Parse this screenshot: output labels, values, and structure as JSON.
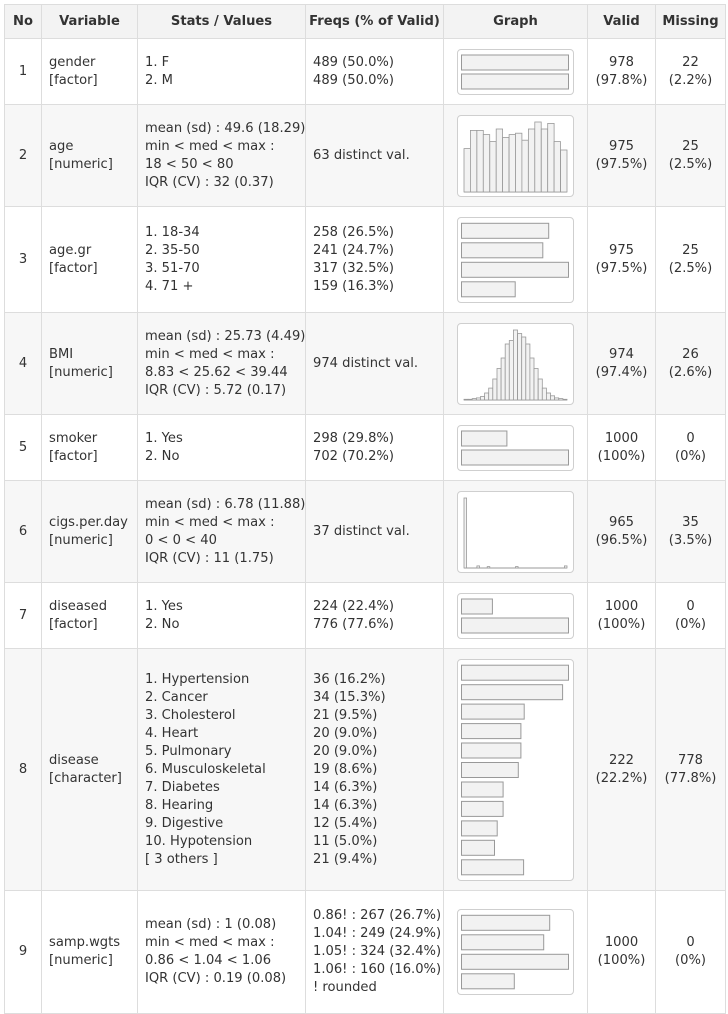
{
  "headers": {
    "no": "No",
    "variable": "Variable",
    "stats": "Stats / Values",
    "freqs": "Freqs (% of Valid)",
    "graph": "Graph",
    "valid": "Valid",
    "missing": "Missing"
  },
  "rows": [
    {
      "no": "1",
      "variable": [
        "gender",
        "[factor]"
      ],
      "stats": [
        "1. F",
        "2. M"
      ],
      "freqs": [
        "489 (50.0%)",
        "489 (50.0%)"
      ],
      "valid": [
        "978",
        "(97.8%)"
      ],
      "missing": [
        "22",
        "(2.2%)"
      ],
      "graph": {
        "type": "bars",
        "values": [
          50.0,
          50.0
        ]
      }
    },
    {
      "no": "2",
      "variable": [
        "age",
        "[numeric]"
      ],
      "stats": [
        "mean (sd) : 49.6 (18.29)",
        "min < med < max :",
        "18 < 50 < 80",
        "IQR (CV) : 32 (0.37)"
      ],
      "freqs": [
        "63 distinct val."
      ],
      "valid": [
        "975",
        "(97.5%)"
      ],
      "missing": [
        "25",
        "(2.5%)"
      ],
      "graph": {
        "type": "histogram",
        "values": [
          0.62,
          0.88,
          0.88,
          0.82,
          0.72,
          0.9,
          0.78,
          0.82,
          0.84,
          0.74,
          0.9,
          1.0,
          0.9,
          0.98,
          0.72,
          0.6
        ]
      }
    },
    {
      "no": "3",
      "variable": [
        "age.gr",
        "[factor]"
      ],
      "stats": [
        "1. 18-34",
        "2. 35-50",
        "3. 51-70",
        "4. 71 +"
      ],
      "freqs": [
        "258 (26.5%)",
        "241 (24.7%)",
        "317 (32.5%)",
        "159 (16.3%)"
      ],
      "valid": [
        "975",
        "(97.5%)"
      ],
      "missing": [
        "25",
        "(2.5%)"
      ],
      "graph": {
        "type": "bars",
        "values": [
          26.5,
          24.7,
          32.5,
          16.3
        ]
      }
    },
    {
      "no": "4",
      "variable": [
        "BMI",
        "[numeric]"
      ],
      "stats": [
        "mean (sd) : 25.73 (4.49)",
        "min < med < max :",
        "8.83 < 25.62 < 39.44",
        "IQR (CV) : 5.72 (0.17)"
      ],
      "freqs": [
        "974 distinct val."
      ],
      "valid": [
        "974",
        "(97.4%)"
      ],
      "missing": [
        "26",
        "(2.6%)"
      ],
      "graph": {
        "type": "histogram",
        "values": [
          0.01,
          0.01,
          0.02,
          0.03,
          0.05,
          0.1,
          0.17,
          0.3,
          0.45,
          0.6,
          0.8,
          0.85,
          1.0,
          0.95,
          0.9,
          0.8,
          0.6,
          0.45,
          0.3,
          0.17,
          0.1,
          0.06,
          0.03,
          0.02,
          0.01
        ]
      }
    },
    {
      "no": "5",
      "variable": [
        "smoker",
        "[factor]"
      ],
      "stats": [
        "1. Yes",
        "2. No"
      ],
      "freqs": [
        "298 (29.8%)",
        "702 (70.2%)"
      ],
      "valid": [
        "1000",
        "(100%)"
      ],
      "missing": [
        "0",
        "(0%)"
      ],
      "graph": {
        "type": "bars",
        "values": [
          29.8,
          70.2
        ]
      }
    },
    {
      "no": "6",
      "variable": [
        "cigs.per.day",
        "[numeric]"
      ],
      "stats": [
        "mean (sd) : 6.78 (11.88)",
        "min < med < max :",
        "0 < 0 < 40",
        "IQR (CV) : 11 (1.75)"
      ],
      "freqs": [
        "37 distinct val."
      ],
      "valid": [
        "965",
        "(96.5%)"
      ],
      "missing": [
        "35",
        "(3.5%)"
      ],
      "graph": {
        "type": "histogram",
        "values": [
          1.0,
          0.0,
          0.0,
          0.0,
          0.0,
          0.03,
          0.0,
          0.0,
          0.0,
          0.02,
          0.0,
          0.0,
          0.0,
          0.0,
          0.0,
          0.0,
          0.0,
          0.0,
          0.0,
          0.0,
          0.02,
          0.0,
          0.0,
          0.0,
          0.0,
          0.0,
          0.0,
          0.0,
          0.0,
          0.0,
          0.0,
          0.0,
          0.0,
          0.0,
          0.0,
          0.0,
          0.0,
          0.0,
          0.0,
          0.03
        ]
      }
    },
    {
      "no": "7",
      "variable": [
        "diseased",
        "[factor]"
      ],
      "stats": [
        "1. Yes",
        "2. No"
      ],
      "freqs": [
        "224 (22.4%)",
        "776 (77.6%)"
      ],
      "valid": [
        "1000",
        "(100%)"
      ],
      "missing": [
        "0",
        "(0%)"
      ],
      "graph": {
        "type": "bars",
        "values": [
          22.4,
          77.6
        ]
      }
    },
    {
      "no": "8",
      "variable": [
        "disease",
        "[character]"
      ],
      "stats": [
        "1. Hypertension",
        "2. Cancer",
        "3. Cholesterol",
        "4. Heart",
        "5. Pulmonary",
        "6. Musculoskeletal",
        "7. Diabetes",
        "8. Hearing",
        "9. Digestive",
        "10. Hypotension",
        "[ 3 others ]"
      ],
      "freqs": [
        "36 (16.2%)",
        "34 (15.3%)",
        "21 (9.5%)",
        "20 (9.0%)",
        "20 (9.0%)",
        "19 (8.6%)",
        "14 (6.3%)",
        "14 (6.3%)",
        "12 (5.4%)",
        "11 (5.0%)",
        "21 (9.4%)"
      ],
      "valid": [
        "222",
        "(22.2%)"
      ],
      "missing": [
        "778",
        "(77.8%)"
      ],
      "graph": {
        "type": "bars",
        "values": [
          16.2,
          15.3,
          9.5,
          9.0,
          9.0,
          8.6,
          6.3,
          6.3,
          5.4,
          5.0,
          9.4
        ]
      }
    },
    {
      "no": "9",
      "variable": [
        "samp.wgts",
        "[numeric]"
      ],
      "stats": [
        "mean (sd) : 1 (0.08)",
        "min < med < max :",
        "0.86 < 1.04 < 1.06",
        "IQR (CV) : 0.19 (0.08)"
      ],
      "freqs": [
        "0.86! : 267 (26.7%)",
        "1.04! : 249 (24.9%)",
        "1.05! : 324 (32.4%)",
        "1.06! : 160 (16.0%)",
        "! rounded"
      ],
      "valid": [
        "1000",
        "(100%)"
      ],
      "missing": [
        "0",
        "(0%)"
      ],
      "graph": {
        "type": "bars",
        "values": [
          26.7,
          24.9,
          32.4,
          16.0
        ]
      }
    }
  ],
  "colors": {
    "header_bg": "#f3f3f3",
    "stripe_bg": "#f7f7f7",
    "border": "#dddddd",
    "bar_fill": "#f2f2f2",
    "bar_stroke": "#999999"
  }
}
